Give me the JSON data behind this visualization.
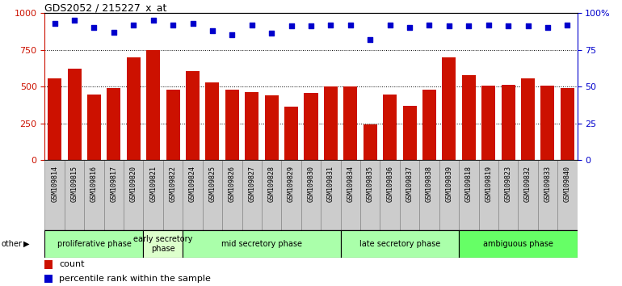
{
  "title": "GDS2052 / 215227_x_at",
  "samples": [
    "GSM109814",
    "GSM109815",
    "GSM109816",
    "GSM109817",
    "GSM109820",
    "GSM109821",
    "GSM109822",
    "GSM109824",
    "GSM109825",
    "GSM109826",
    "GSM109827",
    "GSM109828",
    "GSM109829",
    "GSM109830",
    "GSM109831",
    "GSM109834",
    "GSM109835",
    "GSM109836",
    "GSM109837",
    "GSM109838",
    "GSM109839",
    "GSM109818",
    "GSM109819",
    "GSM109823",
    "GSM109832",
    "GSM109833",
    "GSM109840"
  ],
  "counts": [
    555,
    620,
    445,
    490,
    700,
    750,
    480,
    605,
    530,
    480,
    460,
    440,
    365,
    455,
    500,
    500,
    240,
    445,
    370,
    480,
    700,
    580,
    505,
    510,
    555,
    505,
    490
  ],
  "percentiles": [
    93,
    95,
    90,
    87,
    92,
    95,
    92,
    93,
    88,
    85,
    92,
    86,
    91,
    91,
    92,
    92,
    82,
    92,
    90,
    92,
    91,
    91,
    92,
    91,
    91,
    90,
    92
  ],
  "phases": [
    {
      "name": "proliferative phase",
      "start": 0,
      "end": 5,
      "color": "#aaffaa"
    },
    {
      "name": "early secretory\nphase",
      "start": 5,
      "end": 7,
      "color": "#ddffcc"
    },
    {
      "name": "mid secretory phase",
      "start": 7,
      "end": 15,
      "color": "#aaffaa"
    },
    {
      "name": "late secretory phase",
      "start": 15,
      "end": 21,
      "color": "#aaffaa"
    },
    {
      "name": "ambiguous phase",
      "start": 21,
      "end": 27,
      "color": "#66ff66"
    }
  ],
  "bar_color": "#cc1100",
  "dot_color": "#0000cc",
  "label_bg": "#cccccc",
  "yticks_left": [
    0,
    250,
    500,
    750,
    1000
  ],
  "yticks_right": [
    0,
    25,
    50,
    75,
    100
  ],
  "right_tick_labels": [
    "0",
    "25",
    "50",
    "75",
    "100%"
  ]
}
